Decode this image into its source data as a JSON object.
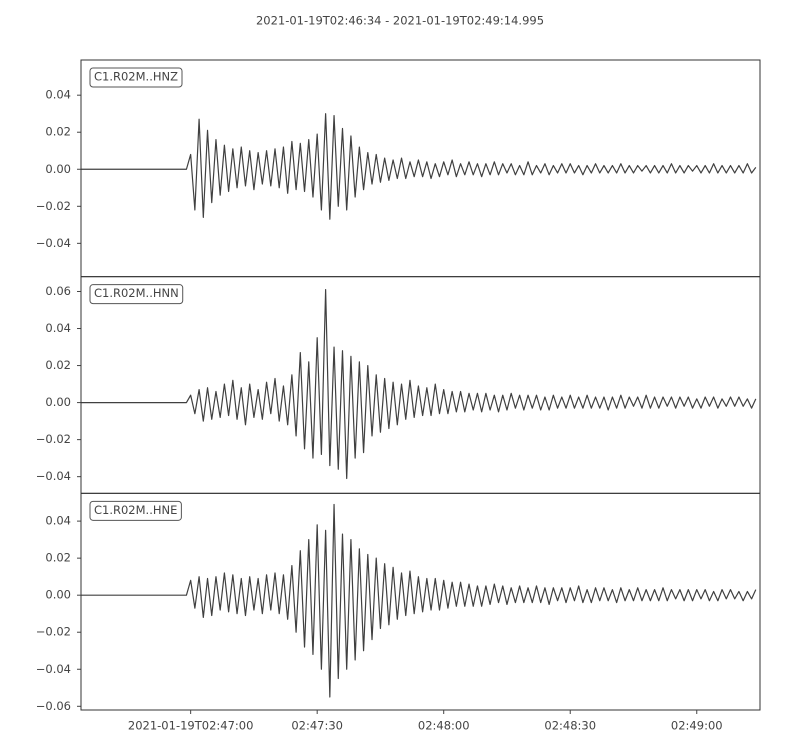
{
  "chart_data": {
    "type": "line",
    "title": "2021-01-19T02:46:34  -  2021-01-19T02:49:14.995",
    "xlim": [
      "2021-01-19T02:46:34",
      "2021-01-19T02:49:14.995"
    ],
    "xticks": [
      "2021-01-19T02:47:00",
      {
        "value": "2021-01-19T02:47:30",
        "label": "02:47:30"
      },
      {
        "value": "2021-01-19T02:48:00",
        "label": "02:48:00"
      },
      {
        "value": "2021-01-19T02:48:30",
        "label": "02:48:30"
      },
      {
        "value": "2021-01-19T02:49:00",
        "label": "02:49:00"
      }
    ],
    "x": [
      "2021-01-19T02:46:34",
      "2021-01-19T02:46:35",
      "2021-01-19T02:46:36",
      "2021-01-19T02:46:37",
      "2021-01-19T02:46:38",
      "2021-01-19T02:46:39",
      "2021-01-19T02:46:40",
      "2021-01-19T02:46:41",
      "2021-01-19T02:46:42",
      "2021-01-19T02:46:43",
      "2021-01-19T02:46:44",
      "2021-01-19T02:46:45",
      "2021-01-19T02:46:46",
      "2021-01-19T02:46:47",
      "2021-01-19T02:46:48",
      "2021-01-19T02:46:49",
      "2021-01-19T02:46:50",
      "2021-01-19T02:46:51",
      "2021-01-19T02:46:52",
      "2021-01-19T02:46:53",
      "2021-01-19T02:46:54",
      "2021-01-19T02:46:55",
      "2021-01-19T02:46:56",
      "2021-01-19T02:46:57",
      "2021-01-19T02:46:58",
      "2021-01-19T02:46:59",
      "2021-01-19T02:47:00",
      "2021-01-19T02:47:01",
      "2021-01-19T02:47:02",
      "2021-01-19T02:47:03",
      "2021-01-19T02:47:04",
      "2021-01-19T02:47:05",
      "2021-01-19T02:47:06",
      "2021-01-19T02:47:07",
      "2021-01-19T02:47:08",
      "2021-01-19T02:47:09",
      "2021-01-19T02:47:10",
      "2021-01-19T02:47:11",
      "2021-01-19T02:47:12",
      "2021-01-19T02:47:13",
      "2021-01-19T02:47:14",
      "2021-01-19T02:47:15",
      "2021-01-19T02:47:16",
      "2021-01-19T02:47:17",
      "2021-01-19T02:47:18",
      "2021-01-19T02:47:19",
      "2021-01-19T02:47:20",
      "2021-01-19T02:47:21",
      "2021-01-19T02:47:22",
      "2021-01-19T02:47:23",
      "2021-01-19T02:47:24",
      "2021-01-19T02:47:25",
      "2021-01-19T02:47:26",
      "2021-01-19T02:47:27",
      "2021-01-19T02:47:28",
      "2021-01-19T02:47:29",
      "2021-01-19T02:47:30",
      "2021-01-19T02:47:31",
      "2021-01-19T02:47:32",
      "2021-01-19T02:47:33",
      "2021-01-19T02:47:34",
      "2021-01-19T02:47:35",
      "2021-01-19T02:47:36",
      "2021-01-19T02:47:37",
      "2021-01-19T02:47:38",
      "2021-01-19T02:47:39",
      "2021-01-19T02:47:40",
      "2021-01-19T02:47:41",
      "2021-01-19T02:47:42",
      "2021-01-19T02:47:43",
      "2021-01-19T02:47:44",
      "2021-01-19T02:47:45",
      "2021-01-19T02:47:46",
      "2021-01-19T02:47:47",
      "2021-01-19T02:47:48",
      "2021-01-19T02:47:49",
      "2021-01-19T02:47:50",
      "2021-01-19T02:47:51",
      "2021-01-19T02:47:52",
      "2021-01-19T02:47:53",
      "2021-01-19T02:47:54",
      "2021-01-19T02:47:55",
      "2021-01-19T02:47:56",
      "2021-01-19T02:47:57",
      "2021-01-19T02:47:58",
      "2021-01-19T02:47:59",
      "2021-01-19T02:48:00",
      "2021-01-19T02:48:01",
      "2021-01-19T02:48:02",
      "2021-01-19T02:48:03",
      "2021-01-19T02:48:04",
      "2021-01-19T02:48:05",
      "2021-01-19T02:48:06",
      "2021-01-19T02:48:07",
      "2021-01-19T02:48:08",
      "2021-01-19T02:48:09",
      "2021-01-19T02:48:10",
      "2021-01-19T02:48:11",
      "2021-01-19T02:48:12",
      "2021-01-19T02:48:13",
      "2021-01-19T02:48:14",
      "2021-01-19T02:48:15",
      "2021-01-19T02:48:16",
      "2021-01-19T02:48:17",
      "2021-01-19T02:48:18",
      "2021-01-19T02:48:19",
      "2021-01-19T02:48:20",
      "2021-01-19T02:48:21",
      "2021-01-19T02:48:22",
      "2021-01-19T02:48:23",
      "2021-01-19T02:48:24",
      "2021-01-19T02:48:25",
      "2021-01-19T02:48:26",
      "2021-01-19T02:48:27",
      "2021-01-19T02:48:28",
      "2021-01-19T02:48:29",
      "2021-01-19T02:48:30",
      "2021-01-19T02:48:31",
      "2021-01-19T02:48:32",
      "2021-01-19T02:48:33",
      "2021-01-19T02:48:34",
      "2021-01-19T02:48:35",
      "2021-01-19T02:48:36",
      "2021-01-19T02:48:37",
      "2021-01-19T02:48:38",
      "2021-01-19T02:48:39",
      "2021-01-19T02:48:40",
      "2021-01-19T02:48:41",
      "2021-01-19T02:48:42",
      "2021-01-19T02:48:43",
      "2021-01-19T02:48:44",
      "2021-01-19T02:48:45",
      "2021-01-19T02:48:46",
      "2021-01-19T02:48:47",
      "2021-01-19T02:48:48",
      "2021-01-19T02:48:49",
      "2021-01-19T02:48:50",
      "2021-01-19T02:48:51",
      "2021-01-19T02:48:52",
      "2021-01-19T02:48:53",
      "2021-01-19T02:48:54",
      "2021-01-19T02:48:55",
      "2021-01-19T02:48:56",
      "2021-01-19T02:48:57",
      "2021-01-19T02:48:58",
      "2021-01-19T02:48:59",
      "2021-01-19T02:49:00",
      "2021-01-19T02:49:01",
      "2021-01-19T02:49:02",
      "2021-01-19T02:49:03",
      "2021-01-19T02:49:04",
      "2021-01-19T02:49:05",
      "2021-01-19T02:49:06",
      "2021-01-19T02:49:07",
      "2021-01-19T02:49:08",
      "2021-01-19T02:49:09",
      "2021-01-19T02:49:10",
      "2021-01-19T02:49:11",
      "2021-01-19T02:49:12",
      "2021-01-19T02:49:13",
      "2021-01-19T02:49:14"
    ],
    "series": [
      {
        "name": "C1.R02M..HNZ",
        "color": "#404040",
        "ylim": [
          -0.058,
          0.059
        ],
        "yticks": [
          {
            "value": -0.04,
            "label": "−0.04"
          },
          {
            "value": -0.02,
            "label": "−0.02"
          },
          {
            "value": 0,
            "label": "0.00"
          },
          0.02,
          0.04
        ],
        "values": [
          0,
          0,
          0,
          0,
          0,
          0,
          0,
          0,
          0,
          0,
          0,
          0,
          0,
          0,
          0,
          0,
          0,
          0,
          0,
          0,
          0,
          0,
          0,
          0,
          0,
          0,
          0.008,
          -0.022,
          0.027,
          -0.026,
          0.021,
          -0.018,
          0.016,
          -0.014,
          0.013,
          -0.012,
          0.011,
          -0.01,
          0.012,
          -0.009,
          0.01,
          -0.011,
          0.009,
          -0.008,
          0.01,
          -0.009,
          0.011,
          -0.01,
          0.012,
          -0.013,
          0.015,
          -0.011,
          0.014,
          -0.012,
          0.016,
          -0.015,
          0.019,
          -0.022,
          0.03,
          -0.027,
          0.029,
          -0.02,
          0.022,
          -0.022,
          0.018,
          -0.015,
          0.012,
          -0.011,
          0.009,
          -0.008,
          0.008,
          -0.007,
          0.006,
          -0.006,
          0.005,
          -0.005,
          0.006,
          -0.005,
          0.004,
          -0.004,
          0.005,
          -0.004,
          0.004,
          -0.005,
          0.003,
          -0.004,
          0.004,
          -0.003,
          0.005,
          -0.004,
          0.003,
          -0.003,
          0.004,
          -0.003,
          0.003,
          -0.004,
          0.003,
          -0.003,
          0.004,
          -0.003,
          0.003,
          -0.002,
          0.003,
          -0.003,
          0.002,
          -0.003,
          0.004,
          -0.003,
          0.002,
          -0.002,
          0.003,
          -0.003,
          0.002,
          -0.002,
          0.003,
          -0.002,
          0.003,
          -0.002,
          0.002,
          -0.003,
          0.002,
          -0.002,
          0.003,
          -0.002,
          0.002,
          -0.002,
          0.002,
          -0.002,
          0.003,
          -0.002,
          0.002,
          -0.002,
          0.002,
          -0.001,
          0.002,
          -0.002,
          0.002,
          -0.002,
          0.002,
          -0.002,
          0.003,
          -0.002,
          0.002,
          -0.002,
          0.002,
          -0.001,
          0.002,
          -0.002,
          0.002,
          -0.002,
          0.003,
          -0.002,
          0.002,
          -0.002,
          0.002,
          -0.002,
          0.002,
          -0.002,
          0.003,
          -0.002,
          0.001
        ]
      },
      {
        "name": "C1.R02M..HNN",
        "color": "#404040",
        "ylim": [
          -0.049,
          0.068
        ],
        "yticks": [
          {
            "value": -0.04,
            "label": "−0.04"
          },
          {
            "value": -0.02,
            "label": "−0.02"
          },
          {
            "value": 0,
            "label": "0.00"
          },
          0.02,
          0.04,
          0.06
        ],
        "values": [
          0,
          0,
          0,
          0,
          0,
          0,
          0,
          0,
          0,
          0,
          0,
          0,
          0,
          0,
          0,
          0,
          0,
          0,
          0,
          0,
          0,
          0,
          0,
          0,
          0,
          0,
          0.004,
          -0.006,
          0.007,
          -0.01,
          0.008,
          -0.009,
          0.006,
          -0.008,
          0.01,
          -0.007,
          0.012,
          -0.009,
          0.008,
          -0.012,
          0.01,
          -0.008,
          0.007,
          -0.009,
          0.011,
          -0.006,
          0.013,
          -0.01,
          0.009,
          -0.012,
          0.015,
          -0.018,
          0.027,
          -0.025,
          0.022,
          -0.03,
          0.035,
          -0.028,
          0.061,
          -0.034,
          0.03,
          -0.036,
          0.028,
          -0.041,
          0.025,
          -0.03,
          0.022,
          -0.027,
          0.02,
          -0.018,
          0.015,
          -0.016,
          0.013,
          -0.014,
          0.011,
          -0.012,
          0.01,
          -0.009,
          0.012,
          -0.008,
          0.009,
          -0.007,
          0.008,
          -0.007,
          0.01,
          -0.006,
          0.007,
          -0.006,
          0.006,
          -0.005,
          0.006,
          -0.005,
          0.005,
          -0.004,
          0.005,
          -0.005,
          0.005,
          -0.004,
          0.004,
          -0.005,
          0.004,
          -0.004,
          0.005,
          -0.003,
          0.004,
          -0.004,
          0.004,
          -0.003,
          0.004,
          -0.004,
          0.003,
          -0.004,
          0.004,
          -0.003,
          0.003,
          -0.003,
          0.004,
          -0.003,
          0.003,
          -0.003,
          0.004,
          -0.003,
          0.003,
          -0.003,
          0.003,
          -0.004,
          0.003,
          -0.003,
          0.004,
          -0.003,
          0.003,
          -0.002,
          0.003,
          -0.003,
          0.004,
          -0.003,
          0.003,
          -0.003,
          0.003,
          -0.002,
          0.003,
          -0.003,
          0.003,
          -0.002,
          0.003,
          -0.003,
          0.002,
          -0.003,
          0.003,
          -0.002,
          0.003,
          -0.003,
          0.002,
          -0.002,
          0.003,
          -0.002,
          0.003,
          -0.002,
          0.002,
          -0.003,
          0.002
        ]
      },
      {
        "name": "C1.R02M..HNE",
        "color": "#404040",
        "ylim": [
          -0.062,
          0.055
        ],
        "yticks": [
          {
            "value": -0.06,
            "label": "−0.06"
          },
          {
            "value": -0.04,
            "label": "−0.04"
          },
          {
            "value": -0.02,
            "label": "−0.02"
          },
          {
            "value": 0,
            "label": "0.00"
          },
          0.02,
          0.04
        ],
        "values": [
          0,
          0,
          0,
          0,
          0,
          0,
          0,
          0,
          0,
          0,
          0,
          0,
          0,
          0,
          0,
          0,
          0,
          0,
          0,
          0,
          0,
          0,
          0,
          0,
          0,
          0,
          0.008,
          -0.007,
          0.01,
          -0.012,
          0.009,
          -0.011,
          0.01,
          -0.008,
          0.012,
          -0.009,
          0.011,
          -0.01,
          0.009,
          -0.011,
          0.01,
          -0.008,
          0.009,
          -0.01,
          0.011,
          -0.008,
          0.012,
          -0.01,
          0.011,
          -0.013,
          0.016,
          -0.02,
          0.024,
          -0.028,
          0.03,
          -0.032,
          0.038,
          -0.04,
          0.035,
          -0.055,
          0.049,
          -0.045,
          0.033,
          -0.04,
          0.03,
          -0.035,
          0.025,
          -0.03,
          0.022,
          -0.024,
          0.02,
          -0.018,
          0.017,
          -0.016,
          0.015,
          -0.013,
          0.012,
          -0.011,
          0.013,
          -0.01,
          0.01,
          -0.009,
          0.009,
          -0.008,
          0.009,
          -0.008,
          0.008,
          -0.007,
          0.007,
          -0.006,
          0.007,
          -0.006,
          0.006,
          -0.006,
          0.005,
          -0.006,
          0.005,
          -0.005,
          0.006,
          -0.004,
          0.005,
          -0.005,
          0.004,
          -0.004,
          0.005,
          -0.004,
          0.004,
          -0.004,
          0.005,
          -0.004,
          0.004,
          -0.005,
          0.004,
          -0.003,
          0.004,
          -0.004,
          0.004,
          -0.003,
          0.005,
          -0.004,
          0.003,
          -0.004,
          0.004,
          -0.003,
          0.004,
          -0.003,
          0.003,
          -0.004,
          0.004,
          -0.003,
          0.003,
          -0.003,
          0.004,
          -0.003,
          0.003,
          -0.003,
          0.003,
          -0.003,
          0.004,
          -0.003,
          0.003,
          -0.002,
          0.003,
          -0.003,
          0.003,
          -0.003,
          0.003,
          -0.002,
          0.003,
          -0.003,
          0.002,
          -0.003,
          0.003,
          -0.002,
          0.003,
          -0.002,
          0.002,
          -0.003,
          0.002,
          -0.002,
          0.003
        ]
      }
    ]
  }
}
